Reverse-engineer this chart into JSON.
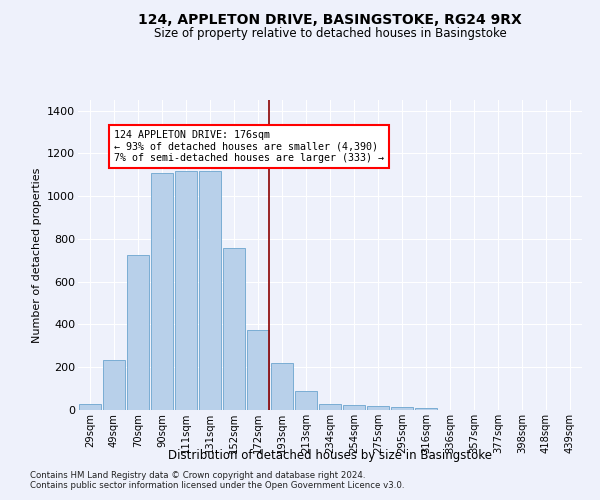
{
  "title": "124, APPLETON DRIVE, BASINGSTOKE, RG24 9RX",
  "subtitle": "Size of property relative to detached houses in Basingstoke",
  "xlabel": "Distribution of detached houses by size in Basingstoke",
  "ylabel": "Number of detached properties",
  "categories": [
    "29sqm",
    "49sqm",
    "70sqm",
    "90sqm",
    "111sqm",
    "131sqm",
    "152sqm",
    "172sqm",
    "193sqm",
    "213sqm",
    "234sqm",
    "254sqm",
    "275sqm",
    "295sqm",
    "316sqm",
    "336sqm",
    "357sqm",
    "377sqm",
    "398sqm",
    "418sqm",
    "439sqm"
  ],
  "values": [
    30,
    235,
    725,
    1110,
    1120,
    1120,
    760,
    375,
    220,
    90,
    30,
    25,
    20,
    15,
    10,
    0,
    0,
    0,
    0,
    0,
    0
  ],
  "bar_color": "#b8d0ea",
  "bar_edge_color": "#7aadd4",
  "marker_bin_index": 7,
  "annotation_line1": "124 APPLETON DRIVE: 176sqm",
  "annotation_line2": "← 93% of detached houses are smaller (4,390)",
  "annotation_line3": "7% of semi-detached houses are larger (333) →",
  "ylim": [
    0,
    1450
  ],
  "yticks": [
    0,
    200,
    400,
    600,
    800,
    1000,
    1200,
    1400
  ],
  "bg_color": "#eef1fb",
  "grid_color": "#ffffff",
  "footer1": "Contains HM Land Registry data © Crown copyright and database right 2024.",
  "footer2": "Contains public sector information licensed under the Open Government Licence v3.0."
}
